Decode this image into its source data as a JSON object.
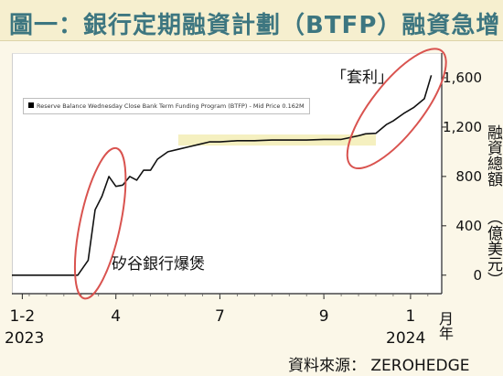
{
  "title": "圖一：銀行定期融資計劃（BTFP）融資急增",
  "source": "資料來源：  ZEROHEDGE",
  "ylabel": "融資總額",
  "yunit": "（億美元）",
  "x_unit": "月年",
  "legend_text": "Reserve Balance Wednesday Close Bank Term Funding Program (BTFP) - Mid Price 0.162M",
  "annotations": {
    "svb": "矽谷銀行爆煲",
    "arbitrage": "「套利」"
  },
  "years": [
    "2023",
    "2024"
  ],
  "colors": {
    "line": "#111111",
    "circle": "#d9534f",
    "highlight": "#f3ecb0",
    "title": "#3d7680"
  },
  "chart_data": {
    "type": "line",
    "title": "圖一：銀行定期融資計劃（BTFP）融資急增",
    "ylabel": "融資總額（億美元）",
    "xlabel": "月年",
    "xlim": [
      0,
      12.4
    ],
    "ylim": [
      -150,
      1800
    ],
    "y_axis_side": "right",
    "yticks": [
      0,
      400,
      800,
      1200,
      1600
    ],
    "ytick_labels": [
      "0",
      "400",
      "800",
      "1,200",
      "1,600"
    ],
    "xticks": [
      0.3,
      3,
      6,
      9,
      11.5
    ],
    "xtick_labels": [
      "1-2",
      "4",
      "7",
      "9",
      "1"
    ],
    "grid": false,
    "legend": "top-left",
    "series": [
      {
        "name": "Reserve Balance Wednesday Close Bank Term Funding Program (BTFP) - Mid Price 0.162M",
        "x": [
          0.0,
          1.9,
          2.05,
          2.2,
          2.4,
          2.6,
          2.8,
          3.0,
          3.2,
          3.4,
          3.6,
          3.8,
          4.0,
          4.2,
          4.5,
          4.8,
          5.1,
          5.4,
          5.7,
          6.0,
          6.5,
          7.0,
          7.5,
          8.0,
          8.5,
          9.0,
          9.5,
          10.0,
          10.2,
          10.5,
          10.8,
          11.0,
          11.3,
          11.6,
          11.9,
          12.1
        ],
        "values": [
          0,
          0,
          60,
          120,
          530,
          640,
          800,
          720,
          730,
          800,
          770,
          850,
          850,
          940,
          1000,
          1020,
          1040,
          1060,
          1080,
          1080,
          1090,
          1090,
          1095,
          1095,
          1095,
          1100,
          1100,
          1130,
          1145,
          1150,
          1220,
          1250,
          1310,
          1360,
          1430,
          1620
        ]
      }
    ],
    "highlight_band": {
      "x_from": 4.8,
      "x_to": 10.5,
      "y_from": 1050,
      "y_to": 1140
    }
  }
}
